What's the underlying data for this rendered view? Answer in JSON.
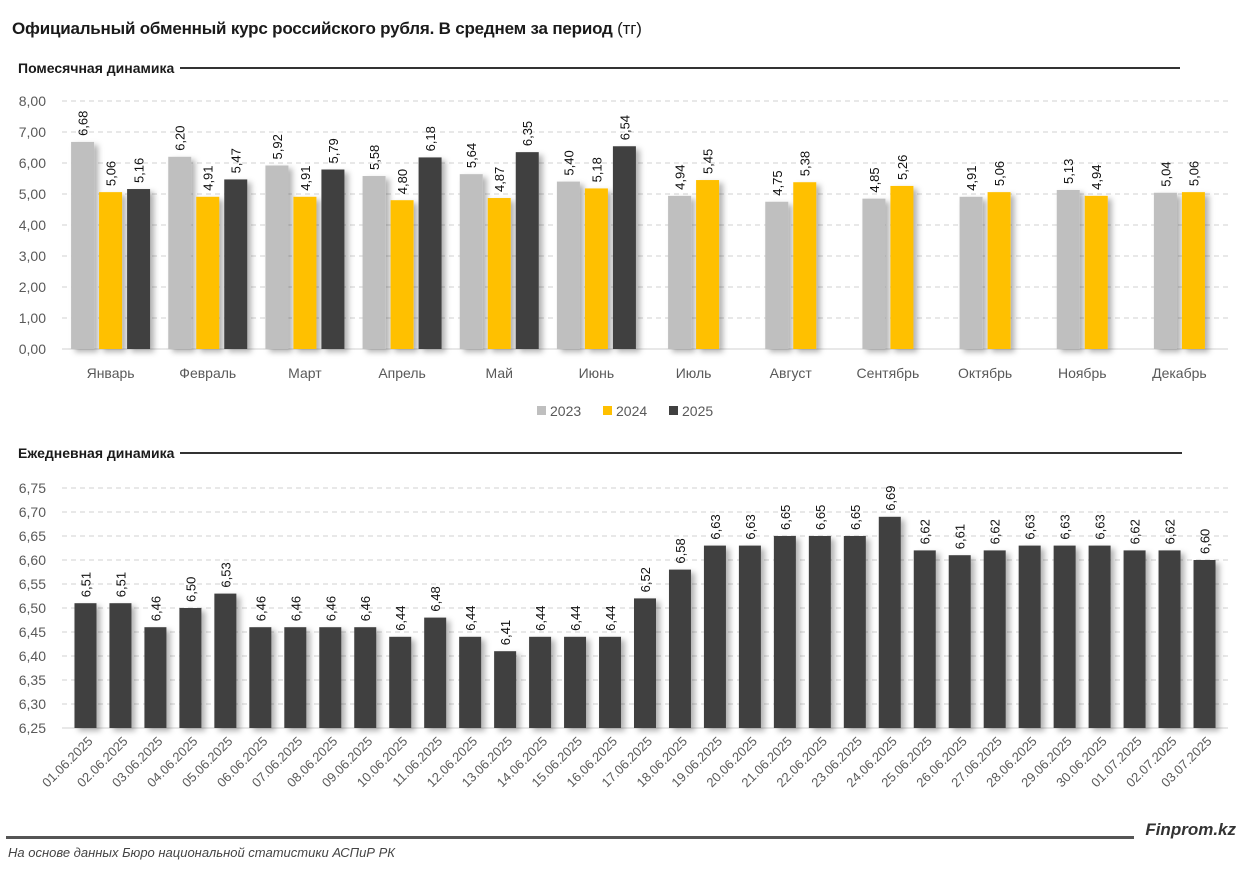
{
  "title": "Официальный обменный курс российского рубля. В среднем за период",
  "title_unit": "(тг)",
  "footer": {
    "source": "На основе данных Бюро национальной статистики АСПиР РК",
    "brand": "Finprom.kz"
  },
  "colors": {
    "2023": "#bfbfbf",
    "2024": "#ffc000",
    "2025": "#404040"
  },
  "chart_data": [
    {
      "type": "bar",
      "title": "Помесячная динамика",
      "xlabel": "",
      "ylabel": "",
      "ylim": [
        0,
        8
      ],
      "yticks": [
        "0,00",
        "1,00",
        "2,00",
        "3,00",
        "4,00",
        "5,00",
        "6,00",
        "7,00",
        "8,00"
      ],
      "grid": true,
      "legend": "bottom",
      "categories": [
        "Январь",
        "Февраль",
        "Март",
        "Апрель",
        "Май",
        "Июнь",
        "Июль",
        "Август",
        "Сентябрь",
        "Октябрь",
        "Ноябрь",
        "Декабрь"
      ],
      "series": [
        {
          "name": "2023",
          "color": "#bfbfbf",
          "values": [
            6.68,
            6.2,
            5.92,
            5.58,
            5.64,
            5.4,
            4.94,
            4.75,
            4.85,
            4.91,
            5.13,
            5.04
          ]
        },
        {
          "name": "2024",
          "color": "#ffc000",
          "values": [
            5.06,
            4.91,
            4.91,
            4.8,
            4.87,
            5.18,
            5.45,
            5.38,
            5.26,
            5.06,
            4.94,
            5.06
          ]
        },
        {
          "name": "2025",
          "color": "#404040",
          "values": [
            5.16,
            5.47,
            5.79,
            6.18,
            6.35,
            6.54,
            null,
            null,
            null,
            null,
            null,
            null
          ]
        }
      ]
    },
    {
      "type": "bar",
      "title": "Ежедневная динамика",
      "xlabel": "",
      "ylabel": "",
      "ylim": [
        6.25,
        6.75
      ],
      "yticks": [
        "6,25",
        "6,30",
        "6,35",
        "6,40",
        "6,45",
        "6,50",
        "6,55",
        "6,60",
        "6,65",
        "6,70",
        "6,75"
      ],
      "grid": true,
      "categories": [
        "01.06.2025",
        "02.06.2025",
        "03.06.2025",
        "04.06.2025",
        "05.06.2025",
        "06.06.2025",
        "07.06.2025",
        "08.06.2025",
        "09.06.2025",
        "10.06.2025",
        "11.06.2025",
        "12.06.2025",
        "13.06.2025",
        "14.06.2025",
        "15.06.2025",
        "16.06.2025",
        "17.06.2025",
        "18.06.2025",
        "19.06.2025",
        "20.06.2025",
        "21.06.2025",
        "22.06.2025",
        "23.06.2025",
        "24.06.2025",
        "25.06.2025",
        "26.06.2025",
        "27.06.2025",
        "28.06.2025",
        "29.06.2025",
        "30.06.2025",
        "01.07.2025",
        "02.07.2025",
        "03.07.2025"
      ],
      "series": [
        {
          "name": "2025",
          "color": "#404040",
          "values": [
            6.51,
            6.51,
            6.46,
            6.5,
            6.53,
            6.46,
            6.46,
            6.46,
            6.46,
            6.44,
            6.48,
            6.44,
            6.41,
            6.44,
            6.44,
            6.44,
            6.52,
            6.58,
            6.63,
            6.63,
            6.65,
            6.65,
            6.65,
            6.69,
            6.62,
            6.61,
            6.62,
            6.63,
            6.63,
            6.63,
            6.62,
            6.62,
            6.6
          ]
        }
      ]
    }
  ]
}
